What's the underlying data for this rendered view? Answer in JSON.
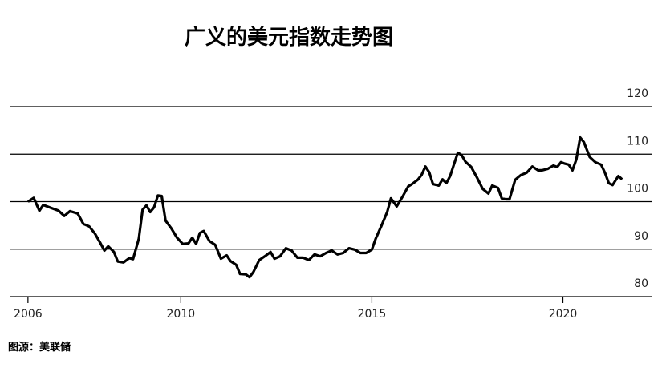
{
  "chart_data": {
    "type": "line",
    "title": "广义的美元指数走势图",
    "source": "图源：美联储",
    "x": [
      2006.0,
      2006.15,
      2006.3,
      2006.4,
      2006.6,
      2006.8,
      2006.95,
      2007.1,
      2007.3,
      2007.45,
      2007.6,
      2007.75,
      2007.9,
      2008.0,
      2008.1,
      2008.25,
      2008.35,
      2008.5,
      2008.65,
      2008.75,
      2008.9,
      2009.0,
      2009.1,
      2009.2,
      2009.3,
      2009.4,
      2009.5,
      2009.6,
      2009.75,
      2009.9,
      2010.05,
      2010.2,
      2010.3,
      2010.4,
      2010.5,
      2010.6,
      2010.75,
      2010.9,
      2011.05,
      2011.2,
      2011.3,
      2011.45,
      2011.55,
      2011.7,
      2011.8,
      2011.9,
      2012.05,
      2012.2,
      2012.35,
      2012.45,
      2012.6,
      2012.75,
      2012.9,
      2013.05,
      2013.2,
      2013.35,
      2013.5,
      2013.65,
      2013.8,
      2013.95,
      2014.1,
      2014.25,
      2014.4,
      2014.55,
      2014.7,
      2014.85,
      2015.0,
      2015.1,
      2015.25,
      2015.4,
      2015.5,
      2015.65,
      2015.8,
      2015.95,
      2016.05,
      2016.2,
      2016.3,
      2016.4,
      2016.5,
      2016.6,
      2016.75,
      2016.85,
      2016.95,
      2017.05,
      2017.15,
      2017.25,
      2017.35,
      2017.45,
      2017.6,
      2017.75,
      2017.9,
      2018.05,
      2018.15,
      2018.3,
      2018.4,
      2018.5,
      2018.6,
      2018.75,
      2018.9,
      2019.05,
      2019.2,
      2019.35,
      2019.45,
      2019.6,
      2019.75,
      2019.85,
      2019.95,
      2020.05,
      2020.15,
      2020.25,
      2020.35,
      2020.45,
      2020.55,
      2020.7,
      2020.85,
      2021.0,
      2021.1,
      2021.2,
      2021.3,
      2021.45,
      2021.55
    ],
    "series": [
      {
        "color": "#000000",
        "values": [
          100.0,
          100.8,
          98.1,
          99.3,
          98.7,
          98.1,
          97.0,
          98.0,
          97.5,
          95.3,
          94.8,
          93.3,
          91.2,
          89.7,
          90.6,
          89.4,
          87.4,
          87.2,
          88.1,
          87.9,
          92.2,
          98.3,
          99.2,
          97.8,
          98.8,
          101.3,
          101.2,
          96.0,
          94.4,
          92.4,
          91.1,
          91.2,
          92.4,
          91.1,
          93.4,
          93.8,
          91.7,
          90.9,
          88.0,
          88.7,
          87.5,
          86.7,
          84.8,
          84.7,
          84.1,
          85.2,
          87.7,
          88.5,
          89.4,
          88.0,
          88.5,
          90.2,
          89.7,
          88.2,
          88.2,
          87.7,
          88.9,
          88.5,
          89.2,
          89.7,
          88.9,
          89.2,
          90.2,
          89.9,
          89.2,
          89.2,
          89.9,
          92.2,
          94.9,
          97.8,
          100.7,
          99.0,
          101.0,
          103.2,
          103.7,
          104.6,
          105.6,
          107.4,
          106.2,
          103.7,
          103.4,
          104.7,
          103.9,
          105.4,
          107.9,
          110.3,
          109.8,
          108.4,
          107.3,
          105.1,
          102.7,
          101.7,
          103.4,
          102.9,
          100.7,
          100.5,
          100.5,
          104.6,
          105.6,
          106.1,
          107.4,
          106.6,
          106.6,
          106.9,
          107.6,
          107.3,
          108.3,
          108.0,
          107.8,
          106.6,
          108.9,
          113.5,
          112.5,
          109.4,
          108.3,
          107.8,
          106.1,
          103.9,
          103.5,
          105.4,
          104.7
        ]
      }
    ],
    "xlim": [
      2005.52,
      2022.32
    ],
    "xticks": [
      2006,
      2010,
      2015,
      2020
    ],
    "ylim": [
      80,
      120
    ],
    "yticks": [
      80,
      90,
      100,
      110,
      120
    ],
    "grid": true
  }
}
